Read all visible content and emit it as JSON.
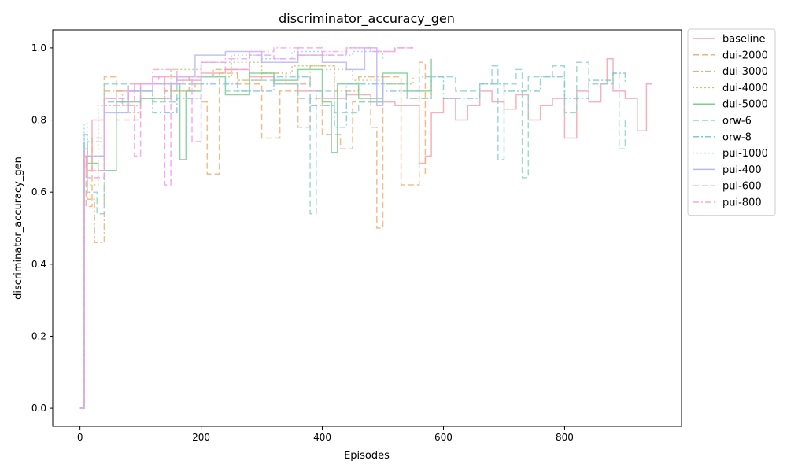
{
  "chart_data": {
    "type": "line",
    "title": "discriminator_accuracy_gen",
    "xlabel": "Episodes",
    "ylabel": "discriminator_accuracy_gen",
    "xlim": [
      -45,
      993
    ],
    "ylim": [
      -0.05,
      1.05
    ],
    "xticks": [
      0,
      200,
      400,
      600,
      800
    ],
    "yticks": [
      0.0,
      0.2,
      0.4,
      0.6,
      0.8,
      1.0
    ],
    "xtick_labels": [
      "0",
      "200",
      "400",
      "600",
      "800"
    ],
    "ytick_labels": [
      "0.0",
      "0.2",
      "0.4",
      "0.6",
      "0.8",
      "1.0"
    ],
    "grid": false,
    "legend_position": "outside-right-top",
    "series": [
      {
        "name": "baseline",
        "color": "#f4a3b3",
        "dash": "solid",
        "x": [
          0,
          7,
          10,
          20,
          40,
          60,
          90,
          120,
          160,
          200,
          240,
          280,
          320,
          360,
          400,
          440,
          480,
          520,
          560,
          570,
          580,
          600,
          620,
          640,
          660,
          680,
          700,
          720,
          740,
          760,
          780,
          800,
          820,
          840,
          860,
          870,
          880,
          900,
          920,
          935,
          945
        ],
        "y": [
          0,
          0.7,
          0.66,
          0.8,
          0.86,
          0.88,
          0.9,
          0.92,
          0.91,
          0.93,
          0.94,
          0.92,
          0.9,
          0.88,
          0.86,
          0.87,
          0.85,
          0.84,
          0.68,
          0.7,
          0.82,
          0.86,
          0.8,
          0.84,
          0.88,
          0.85,
          0.83,
          0.87,
          0.8,
          0.84,
          0.86,
          0.75,
          0.88,
          0.85,
          0.9,
          0.97,
          0.88,
          0.86,
          0.77,
          0.9,
          0.9
        ]
      },
      {
        "name": "dui-2000",
        "color": "#f0b27a",
        "dash": "8,4",
        "x": [
          0,
          7,
          10,
          20,
          40,
          60,
          100,
          140,
          190,
          200,
          210,
          230,
          260,
          300,
          330,
          360,
          380,
          400,
          430,
          450,
          480,
          490,
          500,
          530,
          560,
          570
        ],
        "y": [
          0,
          0.7,
          0.56,
          0.75,
          0.92,
          0.8,
          0.86,
          0.88,
          0.9,
          0.85,
          0.65,
          0.93,
          0.9,
          0.75,
          0.88,
          0.78,
          0.86,
          0.76,
          0.72,
          0.85,
          0.78,
          0.5,
          0.92,
          0.62,
          0.96,
          0.65
        ]
      },
      {
        "name": "dui-3000",
        "color": "#d9b77a",
        "dash": "8,3,2,3",
        "x": [
          0,
          7,
          12,
          24,
          40,
          70,
          100,
          140,
          180,
          220,
          260,
          300,
          340,
          380,
          420,
          460,
          500,
          540,
          580
        ],
        "y": [
          0,
          0.72,
          0.58,
          0.46,
          0.88,
          0.84,
          0.9,
          0.88,
          0.92,
          0.94,
          0.91,
          0.93,
          0.9,
          0.95,
          0.88,
          0.92,
          0.9,
          0.86,
          0.91
        ]
      },
      {
        "name": "dui-4000",
        "color": "#c6c27e",
        "dash": "2,3",
        "x": [
          0,
          7,
          12,
          30,
          60,
          100,
          150,
          200,
          250,
          300,
          350,
          400,
          450,
          500,
          550
        ],
        "y": [
          0,
          0.7,
          0.62,
          0.84,
          0.82,
          0.9,
          0.94,
          0.92,
          0.96,
          0.93,
          0.95,
          0.94,
          0.91,
          0.9,
          0.92
        ]
      },
      {
        "name": "dui-5000",
        "color": "#7ccf8f",
        "dash": "solid",
        "x": [
          0,
          7,
          12,
          30,
          60,
          100,
          150,
          165,
          175,
          200,
          240,
          280,
          320,
          360,
          400,
          415,
          425,
          460,
          500,
          540,
          580
        ],
        "y": [
          0,
          0.72,
          0.68,
          0.66,
          0.85,
          0.86,
          0.9,
          0.69,
          0.88,
          0.92,
          0.87,
          0.93,
          0.91,
          0.94,
          0.85,
          0.71,
          0.9,
          0.86,
          0.93,
          0.88,
          0.97
        ]
      },
      {
        "name": "orw-6",
        "color": "#8fd3c6",
        "dash": "8,4",
        "x": [
          0,
          7,
          12,
          28,
          40,
          80,
          120,
          160,
          200,
          240,
          280,
          320,
          360,
          380,
          390,
          420,
          460,
          500,
          540,
          580,
          620,
          660,
          680,
          690,
          700,
          720,
          730,
          740,
          780,
          800,
          820,
          840,
          880,
          890,
          900
        ],
        "y": [
          0,
          0.74,
          0.6,
          0.54,
          0.9,
          0.88,
          0.85,
          0.9,
          0.92,
          0.88,
          0.91,
          0.9,
          0.86,
          0.54,
          0.88,
          0.82,
          0.85,
          0.9,
          0.86,
          0.92,
          0.88,
          0.9,
          0.95,
          0.69,
          0.9,
          0.94,
          0.64,
          0.92,
          0.95,
          0.82,
          0.96,
          0.9,
          0.93,
          0.72,
          0.8
        ]
      },
      {
        "name": "orw-8",
        "color": "#83c6d6",
        "dash": "8,3,2,3",
        "x": [
          0,
          7,
          12,
          40,
          80,
          120,
          160,
          200,
          260,
          320,
          380,
          420,
          440,
          500,
          560,
          600,
          660,
          700,
          760,
          800,
          840,
          880,
          900
        ],
        "y": [
          0,
          0.76,
          0.7,
          0.85,
          0.88,
          0.82,
          0.86,
          0.9,
          0.88,
          0.92,
          0.84,
          0.78,
          0.9,
          0.88,
          0.92,
          0.86,
          0.9,
          0.88,
          0.92,
          0.86,
          0.91,
          0.93,
          0.9
        ]
      },
      {
        "name": "pui-1000",
        "color": "#9fd0ee",
        "dash": "2,3",
        "x": [
          0,
          7,
          12,
          40,
          80,
          120,
          160,
          200,
          250,
          300,
          350,
          400,
          450,
          500
        ],
        "y": [
          0,
          0.79,
          0.74,
          0.86,
          0.88,
          0.9,
          0.92,
          0.96,
          0.98,
          0.97,
          0.99,
          0.98,
          0.99,
          0.97
        ]
      },
      {
        "name": "pui-400",
        "color": "#b8b6f4",
        "dash": "solid",
        "x": [
          0,
          7,
          12,
          40,
          80,
          120,
          160,
          190,
          240,
          300,
          360,
          400,
          440,
          470,
          490,
          500
        ],
        "y": [
          0,
          0.72,
          0.7,
          0.82,
          0.88,
          0.9,
          0.92,
          0.98,
          0.99,
          0.96,
          0.98,
          0.96,
          0.94,
          1.0,
          0.84,
          0.92
        ]
      },
      {
        "name": "pui-600",
        "color": "#ee9ef0",
        "dash": "8,4",
        "x": [
          0,
          7,
          12,
          40,
          80,
          90,
          100,
          130,
          140,
          150,
          170,
          185,
          200,
          240,
          280,
          320,
          360,
          400,
          440,
          480,
          520,
          550
        ],
        "y": [
          0,
          0.72,
          0.64,
          0.86,
          0.88,
          0.7,
          0.9,
          0.92,
          0.62,
          0.9,
          0.92,
          0.74,
          0.96,
          0.94,
          0.98,
          0.97,
          1.0,
          0.98,
          1.0,
          0.99,
          1.0,
          1.0
        ]
      },
      {
        "name": "pui-800",
        "color": "#f3a8e2",
        "dash": "8,3,2,3",
        "x": [
          0,
          7,
          12,
          40,
          80,
          120,
          160,
          200,
          240,
          280,
          320,
          360,
          400,
          440,
          480,
          520,
          550
        ],
        "y": [
          0,
          0.7,
          0.66,
          0.84,
          0.9,
          0.94,
          0.92,
          0.96,
          0.97,
          0.99,
          1.0,
          0.98,
          0.99,
          1.0,
          0.99,
          1.0,
          1.0
        ]
      }
    ]
  }
}
